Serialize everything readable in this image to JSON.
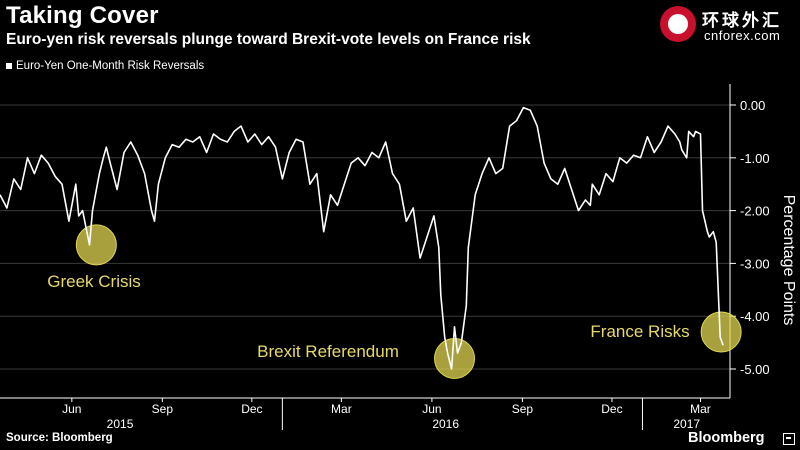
{
  "header": {
    "title": "Taking Cover",
    "subtitle": "Euro-yen risk reversals plunge toward Brexit-vote levels on France risk"
  },
  "watermark": {
    "cn_text": "环球外汇",
    "url": "cnforex.com"
  },
  "footer": {
    "source": "Source: Bloomberg",
    "brand": "Bloomberg"
  },
  "colors": {
    "background": "#000000",
    "line": "#ffffff",
    "highlight_fill": "#e0d651",
    "highlight_text": "#e8d96a",
    "grid": "#3a3a3a",
    "axis_text": "#ffffff"
  },
  "chart_data": {
    "type": "line",
    "title": "Taking Cover",
    "subtitle": "Euro-yen risk reversals plunge toward Brexit-vote levels on France risk",
    "ylabel": "Percentage Points",
    "ylim": [
      -5.4,
      0.4
    ],
    "yticks": [
      0,
      -1,
      -2,
      -3,
      -4,
      -5
    ],
    "ytick_labels": [
      "0.00",
      "-1.00",
      "-2.00",
      "-3.00",
      "-4.00",
      "-5.00"
    ],
    "xlim": [
      "2015-03-20",
      "2017-03-31"
    ],
    "xtick_labels": [
      {
        "label": "Jun",
        "date": "2015-06-01"
      },
      {
        "label": "Sep",
        "date": "2015-09-01"
      },
      {
        "label": "Dec",
        "date": "2015-12-01"
      },
      {
        "label": "Mar",
        "date": "2016-03-01"
      },
      {
        "label": "Jun",
        "date": "2016-06-01"
      },
      {
        "label": "Sep",
        "date": "2016-09-01"
      },
      {
        "label": "Dec",
        "date": "2016-12-01"
      },
      {
        "label": "Mar",
        "date": "2017-03-01"
      }
    ],
    "year_labels": [
      {
        "label": "2015",
        "date": "2015-07-20"
      },
      {
        "label": "2016",
        "date": "2016-06-15"
      },
      {
        "label": "2017",
        "date": "2017-02-15"
      }
    ],
    "year_separators": [
      "2016-01-01",
      "2017-01-01"
    ],
    "grid": "horizontal",
    "legend": {
      "position": "top-left",
      "entries": [
        "Euro-Yen One-Month Risk Reversals"
      ]
    },
    "series": [
      {
        "name": "Euro-Yen One-Month Risk Reversals",
        "x": [
          "2015-03-20",
          "2015-03-27",
          "2015-04-03",
          "2015-04-10",
          "2015-04-17",
          "2015-04-24",
          "2015-05-01",
          "2015-05-08",
          "2015-05-15",
          "2015-05-22",
          "2015-05-29",
          "2015-06-05",
          "2015-06-08",
          "2015-06-12",
          "2015-06-19",
          "2015-06-22",
          "2015-06-26",
          "2015-06-29",
          "2015-07-03",
          "2015-07-06",
          "2015-07-10",
          "2015-07-17",
          "2015-07-24",
          "2015-07-31",
          "2015-08-07",
          "2015-08-14",
          "2015-08-21",
          "2015-08-24",
          "2015-08-28",
          "2015-09-04",
          "2015-09-11",
          "2015-09-18",
          "2015-09-25",
          "2015-10-02",
          "2015-10-09",
          "2015-10-16",
          "2015-10-23",
          "2015-10-30",
          "2015-11-06",
          "2015-11-13",
          "2015-11-20",
          "2015-11-27",
          "2015-12-04",
          "2015-12-11",
          "2015-12-18",
          "2015-12-25",
          "2016-01-01",
          "2016-01-08",
          "2016-01-15",
          "2016-01-22",
          "2016-01-29",
          "2016-02-05",
          "2016-02-12",
          "2016-02-19",
          "2016-02-26",
          "2016-03-04",
          "2016-03-11",
          "2016-03-18",
          "2016-03-25",
          "2016-04-01",
          "2016-04-08",
          "2016-04-15",
          "2016-04-22",
          "2016-04-29",
          "2016-05-06",
          "2016-05-13",
          "2016-05-20",
          "2016-05-27",
          "2016-06-03",
          "2016-06-08",
          "2016-06-10",
          "2016-06-14",
          "2016-06-17",
          "2016-06-21",
          "2016-06-24",
          "2016-06-27",
          "2016-07-01",
          "2016-07-06",
          "2016-07-08",
          "2016-07-15",
          "2016-07-22",
          "2016-07-29",
          "2016-08-05",
          "2016-08-12",
          "2016-08-19",
          "2016-08-26",
          "2016-09-02",
          "2016-09-09",
          "2016-09-16",
          "2016-09-23",
          "2016-09-30",
          "2016-10-07",
          "2016-10-14",
          "2016-10-21",
          "2016-10-28",
          "2016-11-04",
          "2016-11-09",
          "2016-11-11",
          "2016-11-18",
          "2016-11-25",
          "2016-12-02",
          "2016-12-09",
          "2016-12-16",
          "2016-12-23",
          "2016-12-30",
          "2017-01-06",
          "2017-01-13",
          "2017-01-20",
          "2017-01-27",
          "2017-02-03",
          "2017-02-08",
          "2017-02-10",
          "2017-02-15",
          "2017-02-17",
          "2017-02-22",
          "2017-02-24",
          "2017-03-01",
          "2017-03-03",
          "2017-03-08",
          "2017-03-10",
          "2017-03-14",
          "2017-03-17",
          "2017-03-21",
          "2017-03-24"
        ],
        "y": [
          -1.7,
          -1.95,
          -1.4,
          -1.6,
          -1.0,
          -1.3,
          -0.95,
          -1.1,
          -1.35,
          -1.5,
          -2.2,
          -1.5,
          -2.1,
          -2.0,
          -2.65,
          -2.0,
          -1.6,
          -1.3,
          -1.0,
          -0.8,
          -1.1,
          -1.6,
          -0.9,
          -0.7,
          -0.95,
          -1.3,
          -2.0,
          -2.2,
          -1.5,
          -1.0,
          -0.75,
          -0.8,
          -0.65,
          -0.7,
          -0.6,
          -0.9,
          -0.55,
          -0.65,
          -0.7,
          -0.5,
          -0.4,
          -0.7,
          -0.55,
          -0.75,
          -0.6,
          -0.8,
          -1.4,
          -0.9,
          -0.65,
          -0.7,
          -1.5,
          -1.3,
          -2.4,
          -1.7,
          -1.9,
          -1.5,
          -1.1,
          -1.0,
          -1.15,
          -0.9,
          -1.0,
          -0.7,
          -1.3,
          -1.5,
          -2.2,
          -1.95,
          -2.9,
          -2.5,
          -2.1,
          -2.7,
          -3.6,
          -4.4,
          -4.7,
          -5.0,
          -4.2,
          -4.7,
          -4.5,
          -3.8,
          -2.7,
          -1.7,
          -1.3,
          -1.0,
          -1.3,
          -1.2,
          -0.4,
          -0.3,
          -0.05,
          -0.1,
          -0.4,
          -1.1,
          -1.4,
          -1.5,
          -1.2,
          -1.6,
          -2.0,
          -1.8,
          -1.9,
          -1.5,
          -1.7,
          -1.3,
          -1.45,
          -1.0,
          -1.1,
          -0.95,
          -1.0,
          -0.6,
          -0.9,
          -0.7,
          -0.4,
          -0.55,
          -0.7,
          -0.85,
          -1.0,
          -0.5,
          -0.6,
          -0.5,
          -0.55,
          -2.0,
          -2.4,
          -2.5,
          -2.4,
          -2.6,
          -4.4,
          -4.55
        ]
      }
    ],
    "annotations": [
      {
        "label": "Greek Crisis",
        "x": "2015-07-01",
        "y": -2.65
      },
      {
        "label": "Brexit Referendum",
        "x": "2016-06-24",
        "y": -4.8
      },
      {
        "label": "France Risks",
        "x": "2017-03-22",
        "y": -4.3
      }
    ]
  }
}
